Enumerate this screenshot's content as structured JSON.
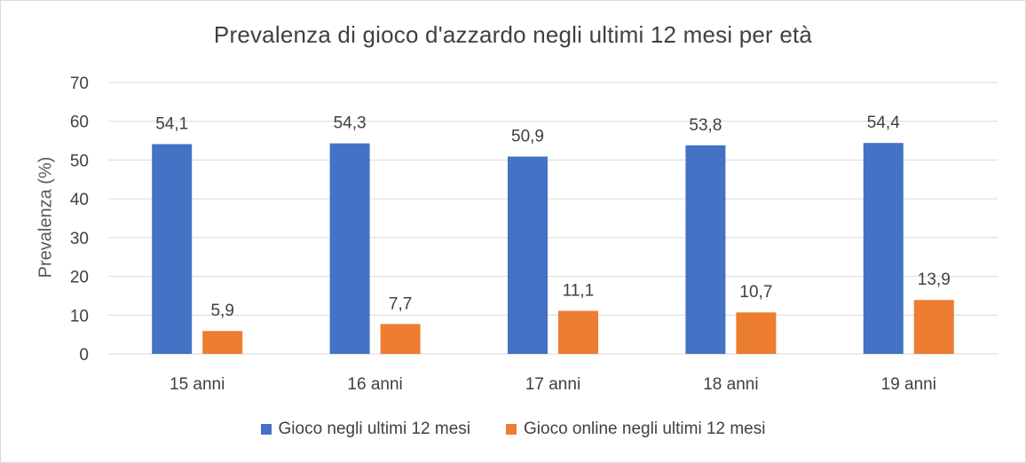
{
  "chart_data": {
    "type": "bar",
    "title": "Prevalenza di gioco d'azzardo negli ultimi 12 mesi per età",
    "xlabel": "",
    "ylabel": "Prevalenza (%)",
    "ylim": [
      0,
      70
    ],
    "yticks": [
      0,
      10,
      20,
      30,
      40,
      50,
      60,
      70
    ],
    "grid": true,
    "legend_position": "bottom",
    "categories": [
      "15 anni",
      "16 anni",
      "17 anni",
      "18 anni",
      "19 anni"
    ],
    "series": [
      {
        "name": "Gioco negli ultimi 12 mesi",
        "values": [
          54.1,
          54.3,
          50.9,
          53.8,
          54.4
        ],
        "labels": [
          "54,1",
          "54,3",
          "50,9",
          "53,8",
          "54,4"
        ],
        "color": "#4472C4"
      },
      {
        "name": "Gioco online negli ultimi 12 mesi",
        "values": [
          5.9,
          7.7,
          11.1,
          10.7,
          13.9
        ],
        "labels": [
          "5,9",
          "7,7",
          "11,1",
          "10,7",
          "13,9"
        ],
        "color": "#ED7D31"
      }
    ]
  }
}
